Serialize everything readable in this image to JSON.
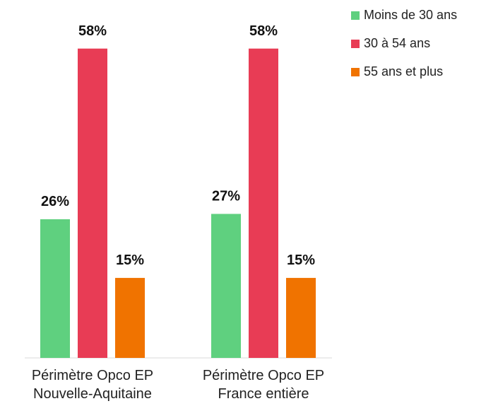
{
  "chart_data": {
    "type": "bar",
    "categories": [
      "Périmètre Opco EP Nouvelle-Aquitaine",
      "Périmètre Opco EP France entière"
    ],
    "series": [
      {
        "name": "Moins de 30 ans",
        "color": "#5fd07f",
        "values": [
          26,
          27
        ],
        "value_labels": [
          "26%",
          "27%"
        ]
      },
      {
        "name": "30 à 54 ans",
        "color": "#e83c55",
        "values": [
          58,
          58
        ],
        "value_labels": [
          "58%",
          "58%"
        ]
      },
      {
        "name": "55 ans et plus",
        "color": "#f07300",
        "values": [
          15,
          15
        ],
        "value_labels": [
          "15%",
          "15%"
        ]
      }
    ],
    "legend": "top-right"
  }
}
